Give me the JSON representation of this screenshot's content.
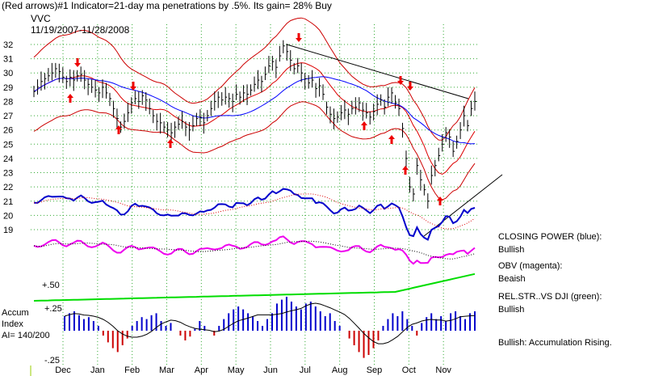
{
  "header": {
    "line1": "(Red arrows)#1 Indicator=21-day ma penetrations by .5%.  Its gain= 28% Buy",
    "ticker": "VVC",
    "range": "11/19/2007-11/28/2008"
  },
  "chart_data": {
    "type": "line",
    "price": {
      "ylim": [
        18,
        32
      ],
      "yticks": [
        19,
        20,
        21,
        22,
        23,
        24,
        25,
        26,
        27,
        28,
        29,
        30,
        31,
        32
      ],
      "close": [
        28.7,
        29.0,
        29.4,
        29.6,
        29.8,
        30.0,
        30.3,
        30.1,
        29.7,
        29.4,
        29.7,
        29.5,
        29.8,
        29.9,
        29.5,
        29.2,
        29.0,
        28.8,
        28.6,
        29.0,
        28.6,
        28.2,
        27.5,
        26.8,
        26.2,
        26.6,
        27.2,
        27.9,
        28.2,
        28.0,
        28.4,
        28.1,
        27.5,
        27.0,
        26.6,
        26.5,
        26.2,
        26.0,
        25.8,
        26.2,
        26.4,
        26.6,
        26.2,
        26.0,
        26.3,
        26.8,
        26.9,
        26.5,
        27.0,
        27.5,
        28.0,
        28.3,
        28.1,
        28.3,
        28.2,
        28.0,
        28.5,
        28.3,
        28.6,
        28.5,
        28.8,
        29.2,
        29.5,
        29.4,
        29.9,
        30.5,
        30.8,
        30.4,
        31.2,
        31.9,
        31.5,
        30.9,
        30.3,
        30.5,
        30.0,
        29.6,
        29.3,
        29.5,
        28.9,
        29.1,
        28.5,
        27.6,
        27.1,
        26.8,
        26.9,
        27.2,
        27.4,
        27.1,
        27.5,
        27.6,
        27.9,
        27.4,
        27.2,
        26.9,
        27.3,
        27.8,
        28.1,
        27.6,
        28.3,
        28.6,
        27.9,
        27.5,
        26.1,
        24.0,
        22.0,
        21.5,
        23.5,
        22.5,
        21.8,
        21.0,
        22.8,
        23.5,
        24.2,
        25.0,
        25.8,
        25.5,
        24.5,
        25.2,
        26.0,
        27.0,
        26.3,
        27.5,
        28.0
      ],
      "month_labels": [
        "Dec",
        "Jan",
        "Feb",
        "Mar",
        "Apr",
        "May",
        "Jun",
        "Jul",
        "Aug",
        "Sep",
        "Oct",
        "Nov"
      ]
    },
    "indicators": [
      {
        "text": "CLOSING POWER (blue):",
        "status": "Bullish",
        "color": "#0000cc"
      },
      {
        "text": "OBV (magenta):",
        "status": "Beaish",
        "color": "#ee00ee"
      },
      {
        "text": "REL.STR..VS DJI (green):",
        "status": "Bullish",
        "color": "#00dd00"
      },
      {
        "text": "Bullish: Accumulation Rising.",
        "status": "",
        "color": "#000000"
      }
    ],
    "accum": {
      "title": "Accum",
      "subtitle": "Index",
      "ai": "AI= 140/200",
      "levels": [
        "+.50",
        "+.25",
        "-.25"
      ],
      "values": [
        0.15,
        0.18,
        0.2,
        0.16,
        0.12,
        0.14,
        0.1,
        0.05,
        -0.05,
        -0.12,
        -0.18,
        -0.22,
        -0.15,
        -0.08,
        0.05,
        0.1,
        0.14,
        0.12,
        0.16,
        0.18,
        0.1,
        0.05,
        0.08,
        0.0,
        -0.05,
        -0.1,
        -0.06,
        0.02,
        0.1,
        0.05,
        0.0,
        -0.05,
        0.05,
        0.12,
        0.18,
        0.22,
        0.25,
        0.22,
        0.18,
        0.15,
        0.1,
        0.05,
        0.12,
        0.18,
        0.28,
        0.32,
        0.35,
        0.3,
        0.25,
        0.22,
        0.28,
        0.3,
        0.25,
        0.2,
        0.15,
        0.18,
        0.1,
        0.05,
        0.0,
        -0.08,
        -0.15,
        -0.22,
        -0.28,
        -0.25,
        -0.18,
        -0.1,
        0.05,
        0.12,
        0.18,
        0.15,
        0.2,
        0.12,
        0.05,
        -0.05,
        0.08,
        0.14,
        0.18,
        0.12,
        0.15,
        0.1,
        0.18,
        0.2,
        0.15,
        0.12,
        0.18,
        0.2
      ]
    }
  }
}
